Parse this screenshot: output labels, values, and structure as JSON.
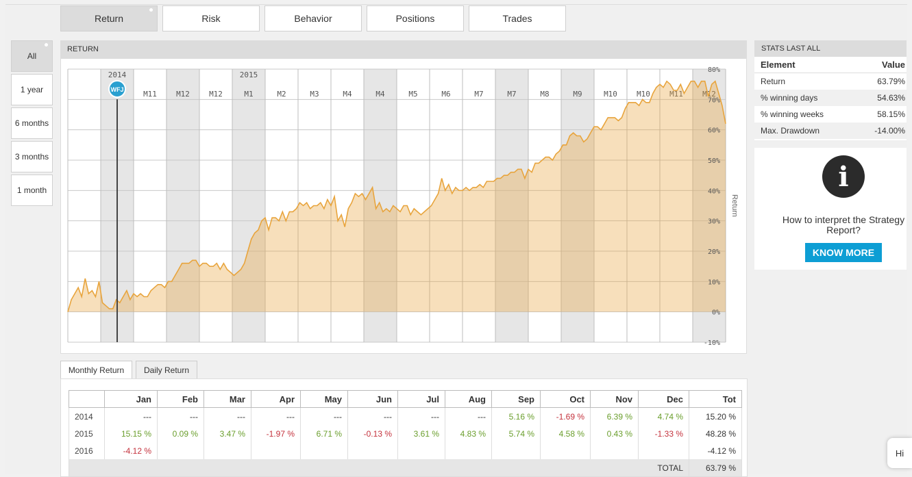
{
  "tabs": [
    "Return",
    "Risk",
    "Behavior",
    "Positions",
    "Trades"
  ],
  "periods": [
    "All",
    "1 year",
    "6 months",
    "3 months",
    "1 month"
  ],
  "chart_panel": {
    "title": "RETURN"
  },
  "chart_data": {
    "type": "area",
    "years": [
      "2014",
      "2015"
    ],
    "months": [
      "M11",
      "M12",
      "M12",
      "M1",
      "M2",
      "M3",
      "M4",
      "M4",
      "M5",
      "M6",
      "M7",
      "M7",
      "M8",
      "M9",
      "M10",
      "M10",
      "M11",
      "M12"
    ],
    "marker": "WFJ",
    "y_ticks": [
      "80%",
      "70%",
      "60%",
      "50%",
      "40%",
      "30%",
      "20%",
      "10%",
      "0%",
      "-10%"
    ],
    "ylabel": "Return",
    "ylim": [
      -10,
      80
    ],
    "color": "#e8a43c",
    "values": [
      0,
      4,
      6,
      8,
      5,
      11,
      6,
      7,
      5,
      10,
      3,
      2,
      1,
      1,
      4,
      3,
      5,
      7,
      4,
      6,
      5,
      6,
      5,
      5,
      7,
      8,
      9,
      9,
      8,
      10,
      10,
      12,
      14,
      16,
      16,
      16,
      17,
      17,
      15,
      16,
      16,
      15,
      15,
      16,
      14,
      16,
      14,
      13,
      12,
      13,
      14,
      16,
      20,
      24,
      26,
      27,
      30,
      31,
      27,
      31,
      31,
      30,
      33,
      30,
      33,
      33,
      34,
      36,
      35,
      36,
      34,
      35,
      35,
      36,
      34,
      37,
      35,
      38,
      30,
      32,
      28,
      34,
      36,
      39,
      38,
      39,
      37,
      39,
      41,
      34,
      36,
      33,
      34,
      33,
      35,
      34,
      33,
      35,
      35,
      32,
      34,
      33,
      32,
      33,
      34,
      35,
      37,
      39,
      44,
      40,
      42,
      39,
      41,
      40,
      40,
      41,
      40,
      41,
      41,
      42,
      41,
      43,
      43,
      43,
      44,
      44,
      45,
      45,
      46,
      46,
      47,
      47,
      44,
      47,
      46,
      49,
      49,
      50,
      51,
      51,
      50,
      52,
      53,
      55,
      55,
      58,
      59,
      58,
      58,
      56,
      57,
      59,
      61,
      61,
      60,
      62,
      64,
      64,
      64,
      63,
      64,
      67,
      69,
      69,
      69,
      68,
      70,
      69,
      69,
      72,
      74,
      75,
      74,
      76,
      75,
      73,
      73,
      75,
      72,
      74,
      76,
      76,
      74,
      76,
      76,
      71,
      75,
      76,
      72,
      68,
      62
    ]
  },
  "stats": {
    "title": "STATS LAST ALL",
    "col_element": "Element",
    "col_value": "Value",
    "rows": [
      {
        "label": "Return",
        "value": "63.79%"
      },
      {
        "label": "% winning days",
        "value": "54.63%"
      },
      {
        "label": "% winning weeks",
        "value": "58.15%"
      },
      {
        "label": "Max. Drawdown",
        "value": "-14.00%"
      }
    ]
  },
  "info": {
    "text": "How to interpret the Strategy Report?",
    "button": "KNOW MORE"
  },
  "subtabs": [
    "Monthly Return",
    "Daily Return"
  ],
  "monthly": {
    "headers": [
      "",
      "Jan",
      "Feb",
      "Mar",
      "Apr",
      "May",
      "Jun",
      "Jul",
      "Aug",
      "Sep",
      "Oct",
      "Nov",
      "Dec",
      "Tot"
    ],
    "rows": [
      [
        "2014",
        "---",
        "---",
        "---",
        "---",
        "---",
        "---",
        "---",
        "---",
        "5.16 %",
        "-1.69 %",
        "6.39 %",
        "4.74 %",
        "15.20 %"
      ],
      [
        "2015",
        "15.15 %",
        "0.09 %",
        "3.47 %",
        "-1.97 %",
        "6.71 %",
        "-0.13 %",
        "3.61 %",
        "4.83 %",
        "5.74 %",
        "4.58 %",
        "0.43 %",
        "-1.33 %",
        "48.28 %"
      ],
      [
        "2016",
        "-4.12 %",
        "",
        "",
        "",
        "",
        "",
        "",
        "",
        "",
        "",
        "",
        "",
        "-4.12 %"
      ]
    ],
    "total_label": "TOTAL",
    "total_value": "63.79 %"
  },
  "chat": {
    "label": "Hi"
  },
  "colors": {
    "positive": "#6a9e2c",
    "negative": "#c4323d",
    "accent": "#0d9ed4",
    "area": "#e8a43c"
  }
}
